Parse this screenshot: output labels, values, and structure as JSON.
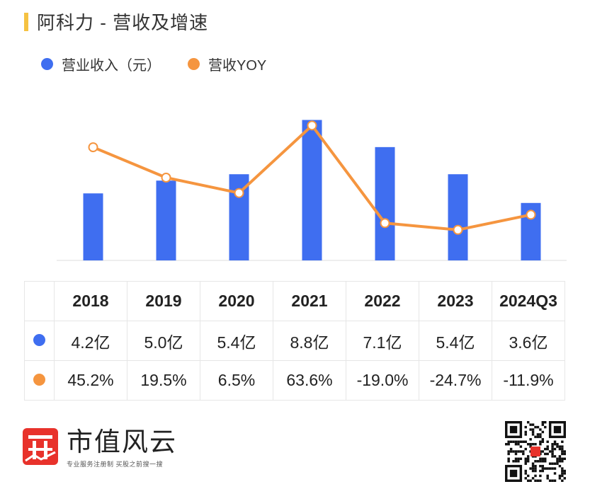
{
  "title": "阿科力 - 营收及增速",
  "legend": {
    "revenue_label": "营业收入（元）",
    "yoy_label": "营收YOY"
  },
  "colors": {
    "bar": "#3f6ef0",
    "line": "#f5953f",
    "accent": "#f5c242",
    "brand_red": "#e8322b"
  },
  "chart_data": {
    "type": "bar",
    "categories": [
      "2018",
      "2019",
      "2020",
      "2021",
      "2022",
      "2023",
      "2024Q3"
    ],
    "series": [
      {
        "name": "营业收入（元）",
        "type": "bar",
        "values": [
          4.2,
          5.0,
          5.4,
          8.8,
          7.1,
          5.4,
          3.6
        ],
        "unit": "亿"
      },
      {
        "name": "营收YOY",
        "type": "line",
        "values": [
          45.2,
          19.5,
          6.5,
          63.6,
          -19.0,
          -24.7,
          -11.9
        ],
        "unit": "%"
      }
    ],
    "ylim_bar": [
      0,
      9
    ],
    "ylim_line": [
      -35,
      68
    ],
    "grid": false,
    "legend_position": "top-left"
  },
  "table": {
    "headers": [
      "2018",
      "2019",
      "2020",
      "2021",
      "2022",
      "2023",
      "2024Q3"
    ],
    "revenue_row": [
      "4.2亿",
      "5.0亿",
      "5.4亿",
      "8.8亿",
      "7.1亿",
      "5.4亿",
      "3.6亿"
    ],
    "yoy_row": [
      "45.2%",
      "19.5%",
      "6.5%",
      "63.6%",
      "-19.0%",
      "-24.7%",
      "-11.9%"
    ]
  },
  "brand": {
    "name": "市值风云",
    "slogan": "专业服务注册制 买股之前搜一搜",
    "logo_icon": "brand-logo-icon",
    "qr_icon": "qr-code-icon"
  }
}
